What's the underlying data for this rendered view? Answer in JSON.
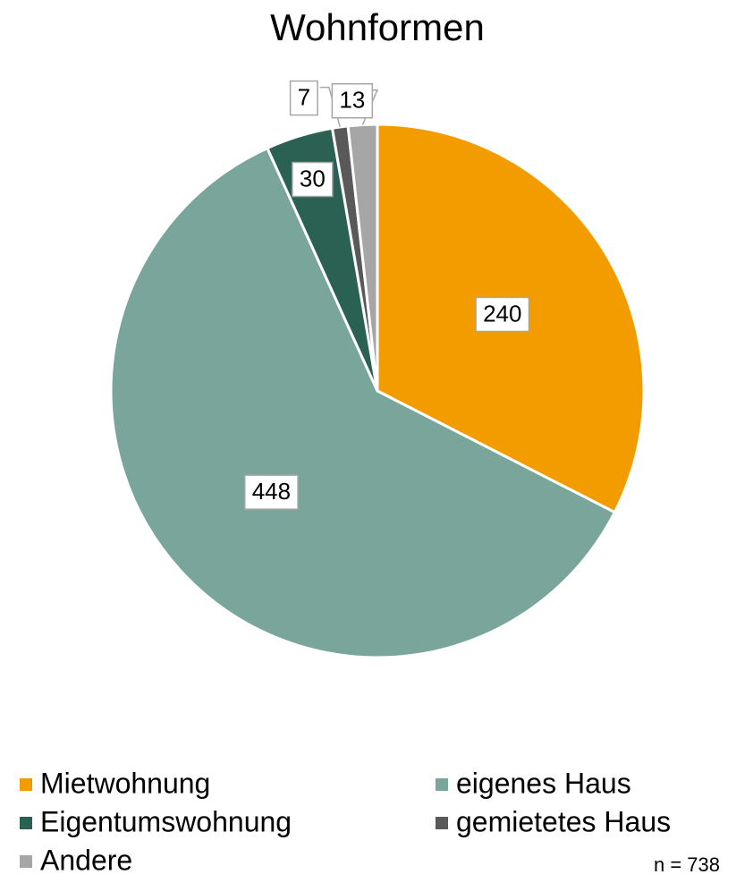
{
  "chart_data": {
    "type": "pie",
    "title": "Wohnformen",
    "categories": [
      "Mietwohnung",
      "eigenes Haus",
      "Eigentumswohnung",
      "gemietetes Haus",
      "Andere"
    ],
    "values": [
      240,
      448,
      30,
      7,
      13
    ],
    "colors": [
      "#f29c00",
      "#7aa59a",
      "#2a6152",
      "#595959",
      "#a6a6a6"
    ],
    "annotation": "n = 738"
  }
}
